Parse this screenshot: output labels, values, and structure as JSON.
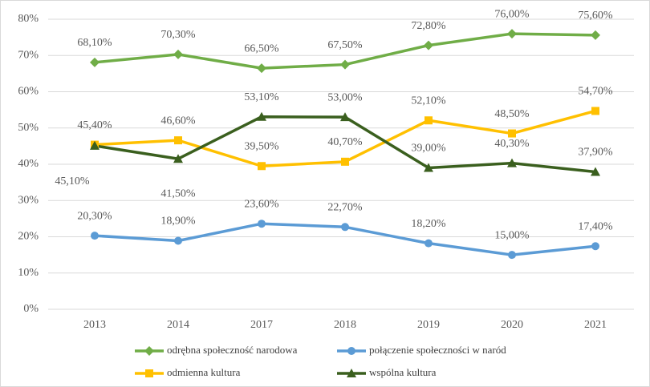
{
  "chart_data": {
    "type": "line",
    "categories": [
      "2013",
      "2014",
      "2017",
      "2018",
      "2019",
      "2020",
      "2021"
    ],
    "ylim": [
      0,
      80
    ],
    "yticks": [
      {
        "value": 0,
        "label": "0%"
      },
      {
        "value": 10,
        "label": "10%"
      },
      {
        "value": 20,
        "label": "20%"
      },
      {
        "value": 30,
        "label": "30%"
      },
      {
        "value": 40,
        "label": "40%"
      },
      {
        "value": 50,
        "label": "50%"
      },
      {
        "value": 60,
        "label": "60%"
      },
      {
        "value": 70,
        "label": "70%"
      },
      {
        "value": 80,
        "label": "80%"
      }
    ],
    "grid": true,
    "legend": "bottom",
    "series": [
      {
        "name": "odrębna społeczność narodowa",
        "color": "#70ad47",
        "marker": "diamond",
        "values": [
          68.1,
          70.3,
          66.5,
          67.5,
          72.8,
          76.0,
          75.6
        ],
        "value_labels": [
          "68,10%",
          "70,30%",
          "66,50%",
          "67,50%",
          "72,80%",
          "76,00%",
          "75,60%"
        ]
      },
      {
        "name": "połączenie społeczności w naród",
        "color": "#5b9bd5",
        "marker": "circle",
        "values": [
          20.3,
          18.9,
          23.6,
          22.7,
          18.2,
          15.0,
          17.4
        ],
        "value_labels": [
          "20,30%",
          "18,90%",
          "23,60%",
          "22,70%",
          "18,20%",
          "15,00%",
          "17,40%"
        ]
      },
      {
        "name": "odmienna kultura",
        "color": "#ffc000",
        "marker": "square",
        "values": [
          45.4,
          46.6,
          39.5,
          40.7,
          52.1,
          48.5,
          54.7
        ],
        "value_labels": [
          "45,40%",
          "46,60%",
          "39,50%",
          "40,70%",
          "52,10%",
          "48,50%",
          "54,70%"
        ]
      },
      {
        "name": "wspólna kultura",
        "color": "#3a5f1e",
        "marker": "triangle",
        "values": [
          45.1,
          41.5,
          53.1,
          53.0,
          39.0,
          40.3,
          37.9
        ],
        "value_labels": [
          "45,10%",
          "41,50%",
          "53,10%",
          "53,00%",
          "39,00%",
          "40,30%",
          "37,90%"
        ]
      }
    ]
  }
}
